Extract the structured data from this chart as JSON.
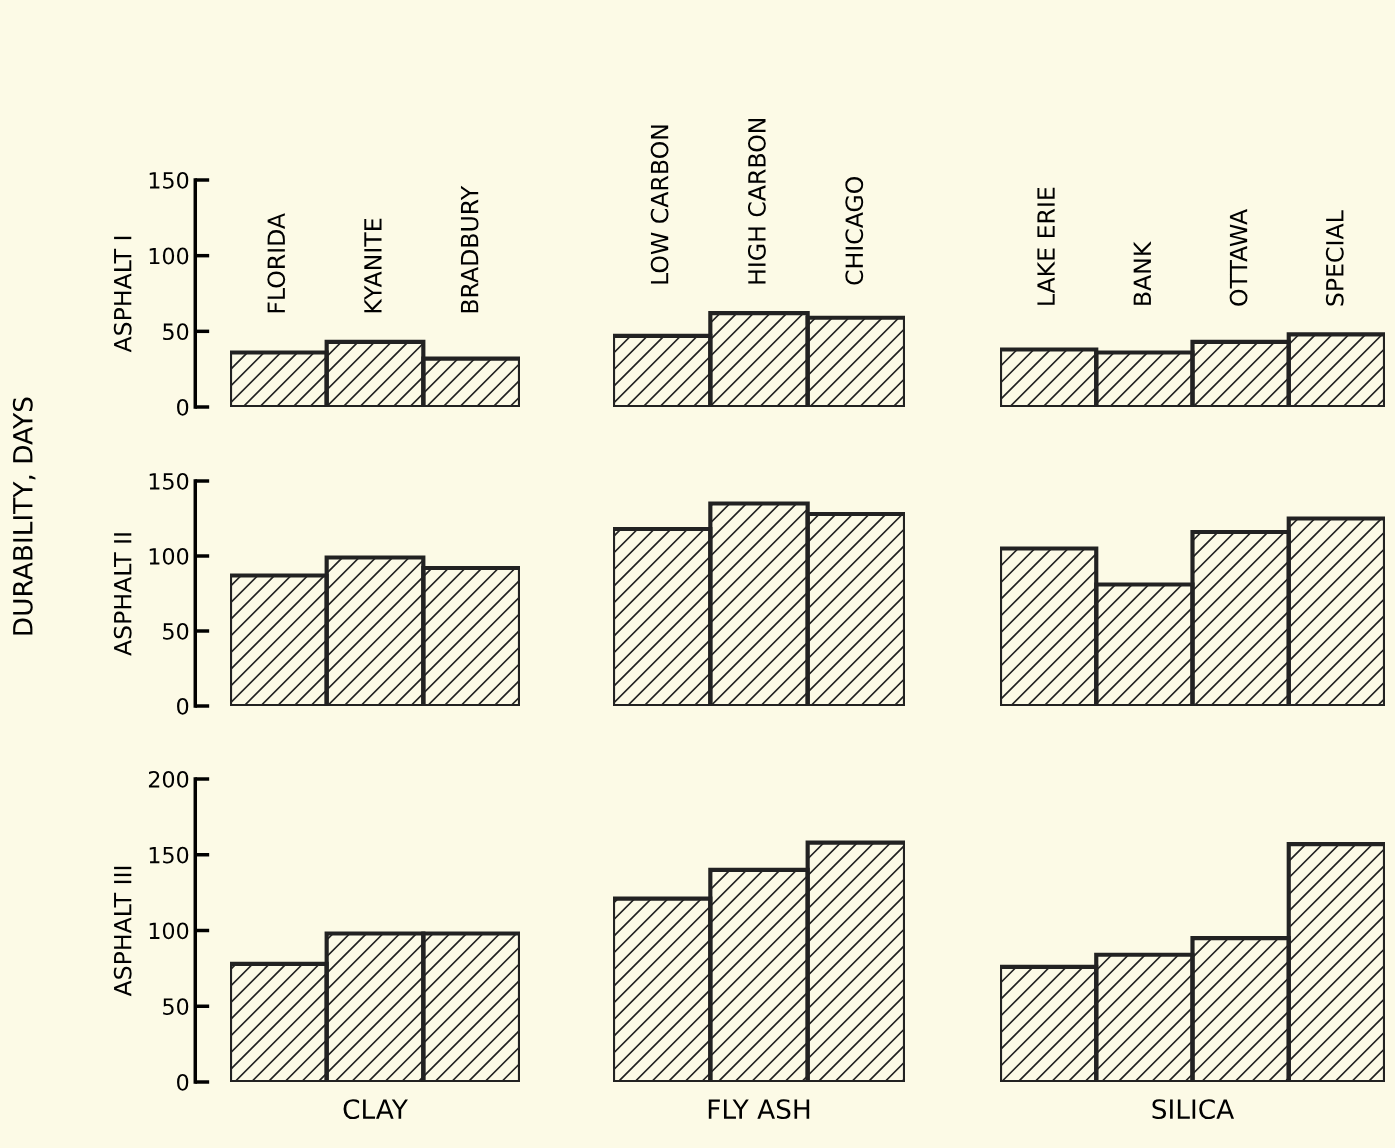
{
  "chart_data": [
    {
      "type": "bar",
      "ylabel": "ASPHALT I",
      "annotations": [
        "DURABILITY, DAYS"
      ],
      "categories": [
        "FLORIDA",
        "KYANITE",
        "BRADBURY"
      ],
      "values": [
        36,
        43,
        32
      ],
      "color": "#222222",
      "ylim": [
        0,
        150
      ],
      "yticks": [
        0,
        50,
        100,
        150
      ]
    },
    {
      "type": "bar",
      "categories": [
        "LOW CARBON",
        "HIGH CARBON",
        "CHICAGO"
      ],
      "values": [
        47,
        62,
        59
      ],
      "color": "#222222",
      "ylim": [
        0,
        150
      ],
      "tick_labels": "x"
    },
    {
      "type": "bar",
      "categories": [
        "LAKE ERIE",
        "BANK",
        "OTTAWA",
        "SPECIAL"
      ],
      "values": [
        38,
        36,
        43,
        48
      ],
      "color": "#222222",
      "ylim": [
        0,
        150
      ],
      "tick_labels": "x"
    },
    {
      "type": "bar",
      "ylabel": "ASPHALT II",
      "categories": [
        null,
        null,
        null
      ],
      "values": [
        87,
        99,
        92
      ],
      "color": "#222222",
      "ylim": [
        0,
        150
      ],
      "yticks": [
        0,
        50,
        100,
        150
      ],
      "tick_labels": "y"
    },
    {
      "type": "bar",
      "categories": [
        null,
        null,
        null
      ],
      "values": [
        118,
        135,
        128
      ],
      "color": "#222222",
      "ylim": [
        0,
        150
      ],
      "tick_labels": false
    },
    {
      "type": "bar",
      "categories": [
        null,
        null,
        null,
        null
      ],
      "values": [
        105,
        81,
        116,
        125
      ],
      "color": "#222222",
      "ylim": [
        0,
        150
      ],
      "tick_labels": false
    },
    {
      "type": "bar",
      "ylabel": "ASPHALT III",
      "xlabel": "CLAY",
      "categories": [
        null,
        null,
        null
      ],
      "values": [
        78,
        98,
        98
      ],
      "color": "#222222",
      "ylim": [
        0,
        200
      ],
      "yticks": [
        0,
        50,
        100,
        150,
        200
      ],
      "tick_labels": "y"
    },
    {
      "type": "bar",
      "xlabel": "FLY ASH",
      "categories": [
        null,
        null,
        null
      ],
      "values": [
        121,
        140,
        158
      ],
      "color": "#222222",
      "ylim": [
        0,
        200
      ],
      "tick_labels": false
    },
    {
      "type": "bar",
      "xlabel": "SILICA",
      "categories": [
        null,
        null,
        null,
        null
      ],
      "values": [
        76,
        84,
        95,
        157
      ],
      "color": "#222222",
      "ylim": [
        0,
        200
      ],
      "tick_labels": false
    }
  ]
}
